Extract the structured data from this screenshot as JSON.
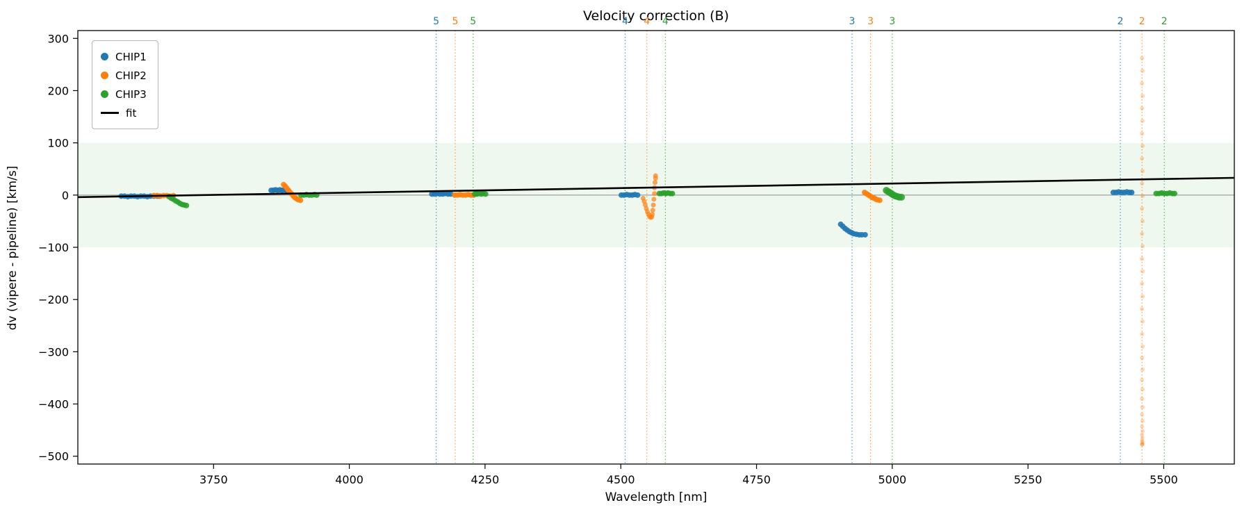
{
  "chart_data": {
    "type": "scatter",
    "title": "Velocity correction (B)",
    "xlabel": "Wavelength [nm]",
    "ylabel": "dv (vipere - pipeline) [km/s]",
    "xlim": [
      3500,
      5630
    ],
    "ylim": [
      -515,
      315
    ],
    "xticks": [
      3750,
      4000,
      4250,
      4500,
      4750,
      5000,
      5250,
      5500
    ],
    "yticks": [
      300,
      200,
      100,
      0,
      -100,
      -200,
      -300,
      -400,
      -500
    ],
    "grid": false,
    "legend_position": "upper left",
    "band": {
      "ymin": -100,
      "ymax": 100,
      "color": "#2ca02c",
      "opacity": 0.08
    },
    "zero_line": {
      "y": 0,
      "color": "#8c8c8c"
    },
    "fit_line": {
      "label": "fit",
      "color": "#000000",
      "x": [
        3500,
        5630
      ],
      "y": [
        -4,
        33
      ]
    },
    "vlines": [
      {
        "x": 4160,
        "color": "#1f77b4",
        "label": "5"
      },
      {
        "x": 4195,
        "color": "#ff7f0e",
        "label": "5"
      },
      {
        "x": 4228,
        "color": "#2ca02c",
        "label": "5"
      },
      {
        "x": 4508,
        "color": "#1f77b4",
        "label": "4"
      },
      {
        "x": 4548,
        "color": "#ff7f0e",
        "label": "4"
      },
      {
        "x": 4582,
        "color": "#2ca02c",
        "label": "4"
      },
      {
        "x": 4926,
        "color": "#1f77b4",
        "label": "3"
      },
      {
        "x": 4960,
        "color": "#ff7f0e",
        "label": "3"
      },
      {
        "x": 5000,
        "color": "#2ca02c",
        "label": "3"
      },
      {
        "x": 5420,
        "color": "#1f77b4",
        "label": "2"
      },
      {
        "x": 5460,
        "color": "#ff7f0e",
        "label": "2"
      },
      {
        "x": 5501,
        "color": "#2ca02c",
        "label": "2"
      }
    ],
    "series": [
      {
        "name": "CHIP1",
        "color": "#1f77b4",
        "clusters": [
          {
            "r": 4,
            "o": 0.9,
            "pts": [
              [
                3580,
                -2
              ],
              [
                3586,
                -2
              ],
              [
                3592,
                -3
              ],
              [
                3598,
                -2
              ],
              [
                3604,
                -2
              ],
              [
                3610,
                -3
              ],
              [
                3616,
                -2
              ],
              [
                3622,
                -2
              ],
              [
                3628,
                -3
              ],
              [
                3634,
                -2
              ],
              [
                3640,
                -2
              ],
              [
                3646,
                -2
              ],
              [
                3650,
                -2
              ]
            ]
          },
          {
            "r": 4,
            "o": 0.9,
            "pts": [
              [
                3856,
                9
              ],
              [
                3860,
                9
              ],
              [
                3864,
                10
              ],
              [
                3868,
                9
              ],
              [
                3872,
                10
              ],
              [
                3876,
                9
              ],
              [
                3880,
                10
              ],
              [
                3884,
                9
              ],
              [
                3887,
                9
              ]
            ]
          },
          {
            "r": 4,
            "o": 0.9,
            "pts": [
              [
                4152,
                2
              ],
              [
                4157,
                2
              ],
              [
                4162,
                3
              ],
              [
                4167,
                2
              ],
              [
                4172,
                2
              ],
              [
                4177,
                3
              ],
              [
                4182,
                2
              ],
              [
                4187,
                2
              ]
            ]
          },
          {
            "r": 4,
            "o": 0.9,
            "pts": [
              [
                4501,
                0
              ],
              [
                4506,
                0
              ],
              [
                4511,
                1
              ],
              [
                4516,
                0
              ],
              [
                4521,
                0
              ],
              [
                4526,
                1
              ],
              [
                4531,
                0
              ]
            ]
          },
          {
            "r": 4,
            "o": 0.9,
            "pts": [
              [
                4905,
                -56
              ],
              [
                4909,
                -60
              ],
              [
                4913,
                -64
              ],
              [
                4917,
                -67
              ],
              [
                4921,
                -70
              ],
              [
                4925,
                -72
              ],
              [
                4929,
                -74
              ],
              [
                4934,
                -75
              ],
              [
                4939,
                -76
              ],
              [
                4944,
                -76
              ],
              [
                4950,
                -76
              ]
            ]
          },
          {
            "r": 4,
            "o": 0.9,
            "pts": [
              [
                5407,
                5
              ],
              [
                5412,
                5
              ],
              [
                5417,
                6
              ],
              [
                5422,
                5
              ],
              [
                5427,
                5
              ],
              [
                5432,
                6
              ],
              [
                5437,
                5
              ],
              [
                5441,
                5
              ]
            ]
          }
        ]
      },
      {
        "name": "CHIP2",
        "color": "#ff7f0e",
        "clusters": [
          {
            "r": 4,
            "o": 0.9,
            "pts": [
              [
                3640,
                -1
              ],
              [
                3646,
                -1
              ],
              [
                3652,
                -2
              ],
              [
                3658,
                -1
              ],
              [
                3664,
                -1
              ],
              [
                3670,
                -2
              ],
              [
                3676,
                -1
              ]
            ]
          },
          {
            "r": 4,
            "o": 0.9,
            "pts": [
              [
                3879,
                20
              ],
              [
                3882,
                17
              ],
              [
                3885,
                13
              ],
              [
                3888,
                9
              ],
              [
                3891,
                5
              ],
              [
                3894,
                2
              ],
              [
                3897,
                -2
              ],
              [
                3900,
                -5
              ],
              [
                3903,
                -7
              ],
              [
                3906,
                -9
              ],
              [
                3910,
                -10
              ]
            ]
          },
          {
            "r": 4,
            "o": 0.9,
            "pts": [
              [
                4194,
                0
              ],
              [
                4199,
                0
              ],
              [
                4204,
                1
              ],
              [
                4209,
                0
              ],
              [
                4214,
                0
              ],
              [
                4219,
                1
              ],
              [
                4224,
                0
              ],
              [
                4229,
                0
              ]
            ]
          },
          {
            "r": 3.5,
            "o": 0.7,
            "pts": [
              [
                4541,
                -6
              ],
              [
                4543,
                -12
              ],
              [
                4545,
                -19
              ],
              [
                4547,
                -26
              ],
              [
                4549,
                -32
              ],
              [
                4551,
                -37
              ],
              [
                4553,
                -41
              ],
              [
                4555,
                -43
              ],
              [
                4557,
                -42
              ],
              [
                4558,
                -37
              ],
              [
                4559,
                -29
              ],
              [
                4560,
                -19
              ],
              [
                4561,
                -8
              ],
              [
                4562,
                3
              ],
              [
                4562,
                14
              ],
              [
                4563,
                24
              ],
              [
                4564,
                32
              ],
              [
                4564,
                37
              ]
            ]
          },
          {
            "r": 4,
            "o": 0.9,
            "pts": [
              [
                4949,
                5
              ],
              [
                4952,
                3
              ],
              [
                4955,
                1
              ],
              [
                4958,
                -1
              ],
              [
                4961,
                -3
              ],
              [
                4964,
                -5
              ],
              [
                4967,
                -6
              ],
              [
                4970,
                -8
              ],
              [
                4973,
                -9
              ],
              [
                4977,
                -10
              ]
            ]
          },
          {
            "r": 3,
            "o": 0.3,
            "pts": [
              [
                5460,
                262
              ],
              [
                5461,
                238
              ],
              [
                5460,
                214
              ],
              [
                5461,
                190
              ],
              [
                5460,
                166
              ],
              [
                5461,
                142
              ],
              [
                5460,
                118
              ],
              [
                5461,
                94
              ],
              [
                5460,
                70
              ],
              [
                5461,
                46
              ],
              [
                5460,
                22
              ],
              [
                5461,
                -2
              ],
              [
                5460,
                -26
              ],
              [
                5461,
                -50
              ],
              [
                5460,
                -74
              ],
              [
                5461,
                -98
              ],
              [
                5460,
                -122
              ],
              [
                5461,
                -146
              ],
              [
                5460,
                -170
              ],
              [
                5461,
                -194
              ],
              [
                5460,
                -218
              ],
              [
                5461,
                -242
              ],
              [
                5460,
                -266
              ],
              [
                5461,
                -290
              ],
              [
                5460,
                -312
              ],
              [
                5461,
                -334
              ],
              [
                5460,
                -354
              ],
              [
                5461,
                -372
              ],
              [
                5460,
                -390
              ],
              [
                5461,
                -406
              ],
              [
                5460,
                -420
              ],
              [
                5461,
                -432
              ],
              [
                5460,
                -443
              ],
              [
                5461,
                -452
              ],
              [
                5460,
                -459
              ],
              [
                5461,
                -465
              ],
              [
                5460,
                -470
              ],
              [
                5461,
                -473
              ],
              [
                5460,
                -476
              ],
              [
                5461,
                -477
              ],
              [
                5460,
                -478
              ]
            ]
          }
        ]
      },
      {
        "name": "CHIP3",
        "color": "#2ca02c",
        "clusters": [
          {
            "r": 4,
            "o": 0.9,
            "pts": [
              [
                3668,
                -3
              ],
              [
                3672,
                -6
              ],
              [
                3676,
                -8
              ],
              [
                3680,
                -11
              ],
              [
                3684,
                -13
              ],
              [
                3688,
                -16
              ],
              [
                3692,
                -18
              ],
              [
                3696,
                -19
              ],
              [
                3700,
                -20
              ]
            ]
          },
          {
            "r": 4,
            "o": 0.9,
            "pts": [
              [
                3911,
                0
              ],
              [
                3916,
                0
              ],
              [
                3921,
                1
              ],
              [
                3926,
                0
              ],
              [
                3931,
                0
              ],
              [
                3936,
                1
              ],
              [
                3940,
                0
              ]
            ]
          },
          {
            "r": 4,
            "o": 0.9,
            "pts": [
              [
                4231,
                2
              ],
              [
                4235,
                2
              ],
              [
                4239,
                3
              ],
              [
                4243,
                2
              ],
              [
                4247,
                3
              ],
              [
                4251,
                2
              ]
            ]
          },
          {
            "r": 4,
            "o": 0.9,
            "pts": [
              [
                4571,
                3
              ],
              [
                4575,
                3
              ],
              [
                4579,
                4
              ],
              [
                4583,
                3
              ],
              [
                4587,
                4
              ],
              [
                4591,
                3
              ],
              [
                4595,
                3
              ]
            ]
          },
          {
            "r": 5,
            "o": 0.85,
            "pts": [
              [
                4989,
                9
              ],
              [
                4992,
                7
              ],
              [
                4995,
                5
              ],
              [
                4998,
                3
              ],
              [
                5001,
                1
              ],
              [
                5004,
                -1
              ],
              [
                5007,
                -2
              ],
              [
                5010,
                -3
              ],
              [
                5013,
                -4
              ],
              [
                5017,
                -4
              ]
            ]
          },
          {
            "r": 4,
            "o": 0.9,
            "pts": [
              [
                5486,
                3
              ],
              [
                5491,
                3
              ],
              [
                5496,
                4
              ],
              [
                5501,
                3
              ],
              [
                5506,
                3
              ],
              [
                5511,
                4
              ],
              [
                5516,
                3
              ],
              [
                5520,
                3
              ]
            ]
          }
        ]
      }
    ],
    "legend": [
      {
        "label": "CHIP1",
        "marker": "dot",
        "color": "#1f77b4"
      },
      {
        "label": "CHIP2",
        "marker": "dot",
        "color": "#ff7f0e"
      },
      {
        "label": "CHIP3",
        "marker": "dot",
        "color": "#2ca02c"
      },
      {
        "label": "fit",
        "marker": "line",
        "color": "#000000"
      }
    ]
  }
}
